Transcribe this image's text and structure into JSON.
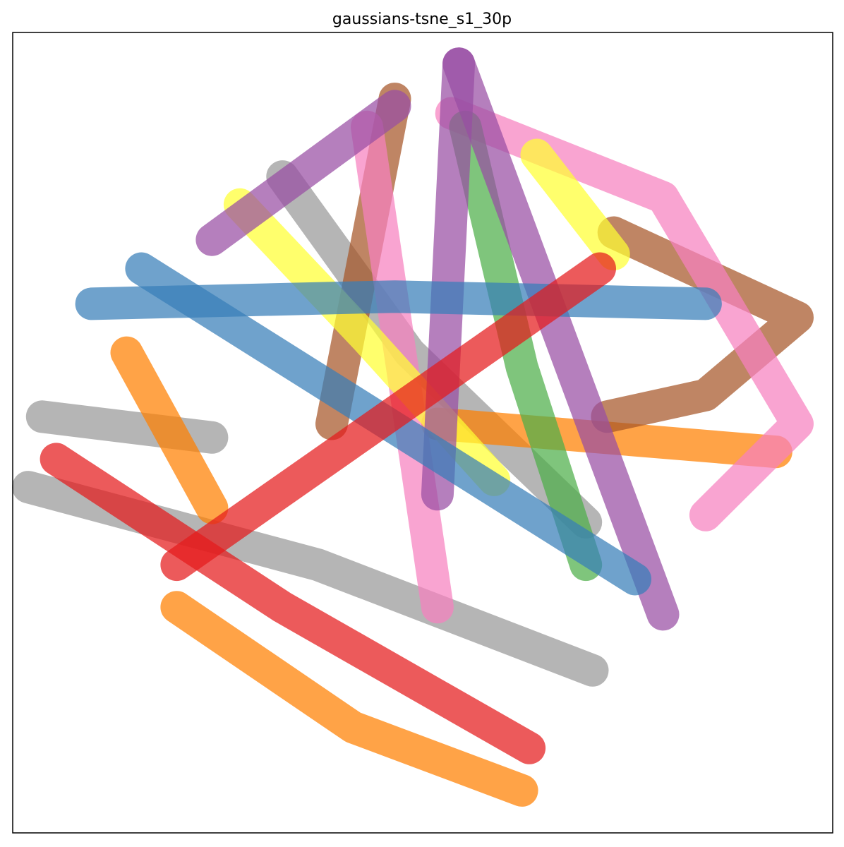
{
  "chart_data": {
    "type": "line",
    "title": "gaussians-tsne_s1_30p",
    "xlim": [
      0,
      100
    ],
    "ylim": [
      0,
      100
    ],
    "series": [
      {
        "color": "#999999",
        "x": [
          1.9,
          37.2,
          70.7
        ],
        "values": [
          43.2,
          33.5,
          20.3
        ]
      },
      {
        "color": "#999999",
        "x": [
          32.9,
          48.4,
          69.9
        ],
        "values": [
          82.0,
          60.0,
          38.8
        ]
      },
      {
        "color": "#999999",
        "x": [
          3.6,
          24.3
        ],
        "values": [
          52.0,
          49.4
        ]
      },
      {
        "color": "#ff7f00",
        "x": [
          20.0,
          41.5,
          62.1
        ],
        "values": [
          28.2,
          13.2,
          5.3
        ]
      },
      {
        "color": "#ff7f00",
        "x": [
          13.9,
          24.3
        ],
        "values": [
          60.0,
          40.6
        ]
      },
      {
        "color": "#ff7f00",
        "x": [
          51.8,
          93.1
        ],
        "values": [
          51.1,
          47.6
        ]
      },
      {
        "color": "#e41a1c",
        "x": [
          5.3,
          32.9,
          63.0
        ],
        "values": [
          46.7,
          28.2,
          10.6
        ]
      },
      {
        "color": "#a65628",
        "x": [
          46.6,
          38.9
        ],
        "values": [
          91.7,
          51.1
        ]
      },
      {
        "color": "#a65628",
        "x": [
          73.3,
          95.7,
          84.5,
          72.5
        ],
        "values": [
          75.0,
          64.4,
          54.7,
          52.0
        ]
      },
      {
        "color": "#f781bf",
        "x": [
          53.5,
          79.3,
          95.7,
          84.5
        ],
        "values": [
          89.9,
          79.4,
          51.1,
          39.7
        ]
      },
      {
        "color": "#f781bf",
        "x": [
          43.2,
          51.8
        ],
        "values": [
          88.2,
          28.2
        ]
      },
      {
        "color": "#ffff33",
        "x": [
          27.7,
          43.2,
          58.7
        ],
        "values": [
          78.5,
          61.7,
          44.1
        ]
      },
      {
        "color": "#ffff33",
        "x": [
          63.9,
          73.3
        ],
        "values": [
          84.7,
          72.3
        ]
      },
      {
        "color": "#4daf4a",
        "x": [
          55.2,
          62.1,
          69.9
        ],
        "values": [
          88.2,
          58.2,
          33.5
        ]
      },
      {
        "color": "#984ea3",
        "x": [
          54.4,
          51.8
        ],
        "values": [
          96.1,
          42.3
        ]
      },
      {
        "color": "#984ea3",
        "x": [
          54.4,
          79.3
        ],
        "values": [
          96.1,
          27.3
        ]
      },
      {
        "color": "#984ea3",
        "x": [
          24.3,
          46.6
        ],
        "values": [
          74.1,
          90.8
        ]
      },
      {
        "color": "#377eb8",
        "x": [
          9.6,
          46.6,
          84.5
        ],
        "values": [
          66.1,
          67.0,
          66.1
        ]
      },
      {
        "color": "#377eb8",
        "x": [
          15.7,
          75.9
        ],
        "values": [
          70.5,
          31.7
        ]
      },
      {
        "color": "#e41a1c",
        "x": [
          20.0,
          71.6
        ],
        "values": [
          33.5,
          70.5
        ]
      }
    ]
  }
}
